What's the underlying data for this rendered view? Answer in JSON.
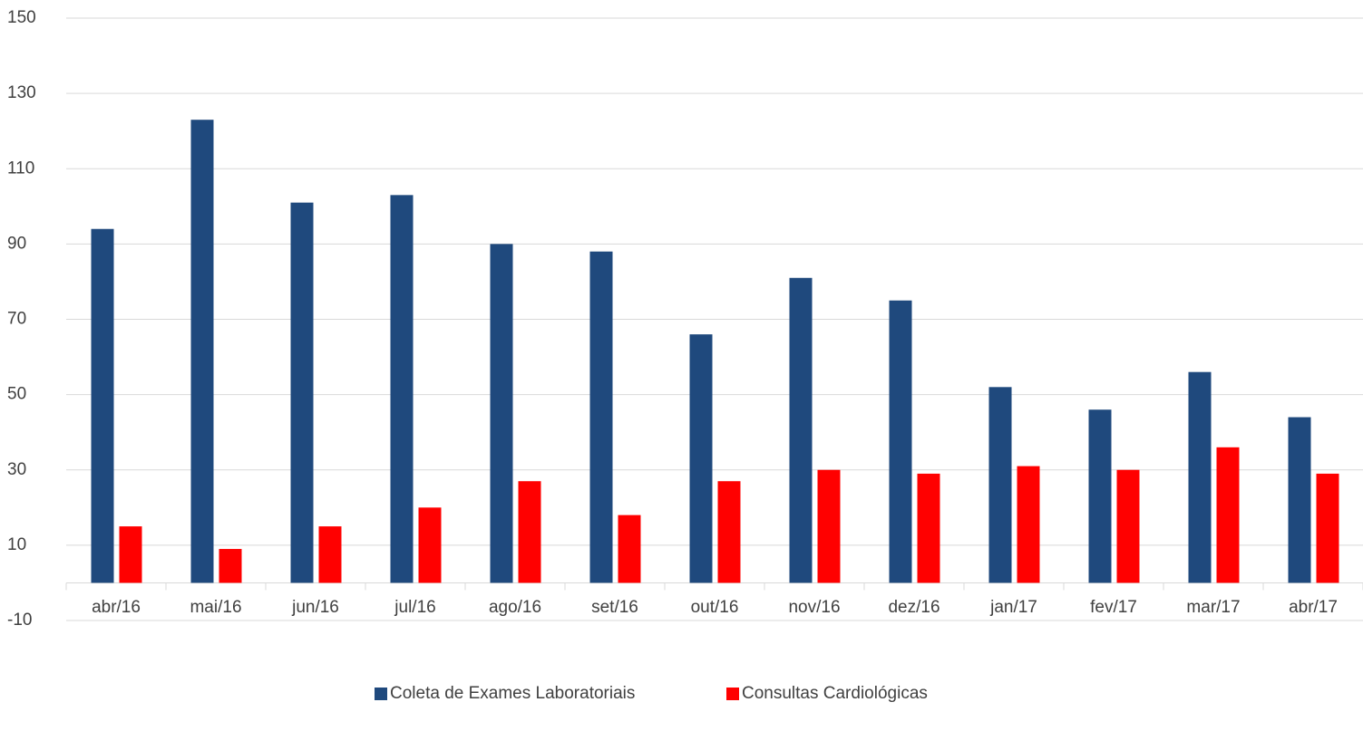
{
  "chart_data": {
    "type": "bar",
    "categories": [
      "abr/16",
      "mai/16",
      "jun/16",
      "jul/16",
      "ago/16",
      "set/16",
      "out/16",
      "nov/16",
      "dez/16",
      "jan/17",
      "fev/17",
      "mar/17",
      "abr/17"
    ],
    "series": [
      {
        "name": "Coleta de Exames Laboratoriais",
        "color": "#1f497d",
        "values": [
          94,
          123,
          101,
          103,
          90,
          88,
          66,
          81,
          75,
          52,
          46,
          56,
          44
        ]
      },
      {
        "name": "Consultas Cardiológicas",
        "color": "#ff0000",
        "values": [
          15,
          9,
          15,
          20,
          27,
          18,
          27,
          30,
          29,
          31,
          30,
          36,
          29
        ]
      }
    ],
    "ylim": [
      -10,
      150
    ],
    "yticks": [
      -10,
      10,
      30,
      50,
      70,
      90,
      110,
      130,
      150
    ],
    "grid": true,
    "legend": "bottom"
  }
}
